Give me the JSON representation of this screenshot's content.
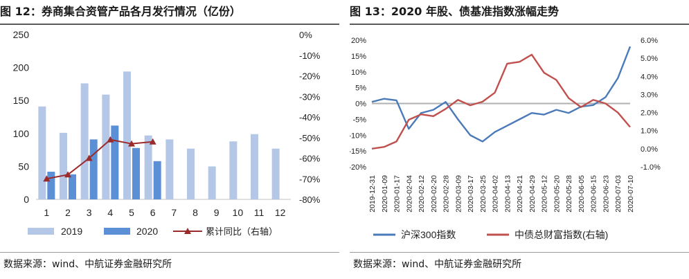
{
  "left": {
    "title": "图 12：券商集合资管产品各月发行情况（亿份）",
    "source": "数据来源：wind、中航证券金融研究所",
    "chart_data": {
      "type": "bar",
      "categories": [
        "1",
        "2",
        "3",
        "4",
        "5",
        "6",
        "7",
        "8",
        "9",
        "10",
        "11",
        "12"
      ],
      "series": [
        {
          "name": "2019",
          "kind": "bar",
          "color": "#b4c7e7",
          "values": [
            141,
            101,
            176,
            159,
            194,
            97,
            91,
            77,
            50,
            88,
            99,
            77
          ]
        },
        {
          "name": "2020",
          "kind": "bar",
          "color": "#5b8fd6",
          "values": [
            42,
            38,
            91,
            112,
            78,
            58,
            null,
            null,
            null,
            null,
            null,
            null
          ]
        },
        {
          "name": "累计同比（右轴）",
          "kind": "line",
          "axis": "right",
          "color": "#9b2a2a",
          "marker": "triangle",
          "values": [
            -70,
            -68,
            -60,
            -51,
            -53,
            -52,
            null,
            null,
            null,
            null,
            null,
            null
          ]
        }
      ],
      "ylim": [
        0,
        250
      ],
      "yticks": [
        0,
        50,
        100,
        150,
        200,
        250
      ],
      "y2lim": [
        -80,
        0
      ],
      "y2ticks": [
        "0%",
        "-10%",
        "-20%",
        "-30%",
        "-40%",
        "-50%",
        "-60%",
        "-70%",
        "-80%"
      ],
      "legend": "bottom"
    }
  },
  "right": {
    "title": "图 13：2020 年股、债基准指数涨幅走势",
    "source": "数据来源：wind、中航证券金融研究所",
    "chart_data": {
      "type": "line",
      "x": [
        "2019-12-31",
        "2020-01-09",
        "2020-01-17",
        "2020-02-04",
        "2020-02-12",
        "2020-02-20",
        "2020-02-28",
        "2020-03-09",
        "2020-03-17",
        "2020-03-25",
        "2020-04-02",
        "2020-04-13",
        "2020-04-21",
        "2020-04-29",
        "2020-05-12",
        "2020-05-20",
        "2020-05-28",
        "2020-06-05",
        "2020-06-15",
        "2020-06-23",
        "2020-07-03",
        "2020-07-10"
      ],
      "series": [
        {
          "name": "沪深300指数",
          "axis": "left",
          "color": "#4a7ab8",
          "values": [
            0.5,
            1.5,
            1.0,
            -8.0,
            -3.0,
            -2.0,
            0.5,
            -5.0,
            -10.0,
            -12.0,
            -9.0,
            -7.0,
            -5.0,
            -3.0,
            -3.5,
            -2.0,
            -3.0,
            -1.0,
            -0.5,
            2.0,
            8.0,
            18.0
          ]
        },
        {
          "name": "中债总财富指数(右轴)",
          "axis": "right",
          "color": "#c0504d",
          "values": [
            0.0,
            0.1,
            0.4,
            1.6,
            1.9,
            1.8,
            2.2,
            2.7,
            2.4,
            2.6,
            3.1,
            4.7,
            4.8,
            5.2,
            4.2,
            3.8,
            2.8,
            2.3,
            2.7,
            2.5,
            2.0,
            1.2
          ]
        }
      ],
      "ylim": [
        -20,
        20
      ],
      "yticks": [
        "20%",
        "15%",
        "10%",
        "5%",
        "0%",
        "-5%",
        "-10%",
        "-15%",
        "-20%"
      ],
      "y2lim": [
        -1,
        6
      ],
      "y2ticks": [
        "6.0%",
        "5.0%",
        "4.0%",
        "3.0%",
        "2.0%",
        "1.0%",
        "0.0%",
        "-1.0%"
      ],
      "legend": "bottom"
    }
  }
}
